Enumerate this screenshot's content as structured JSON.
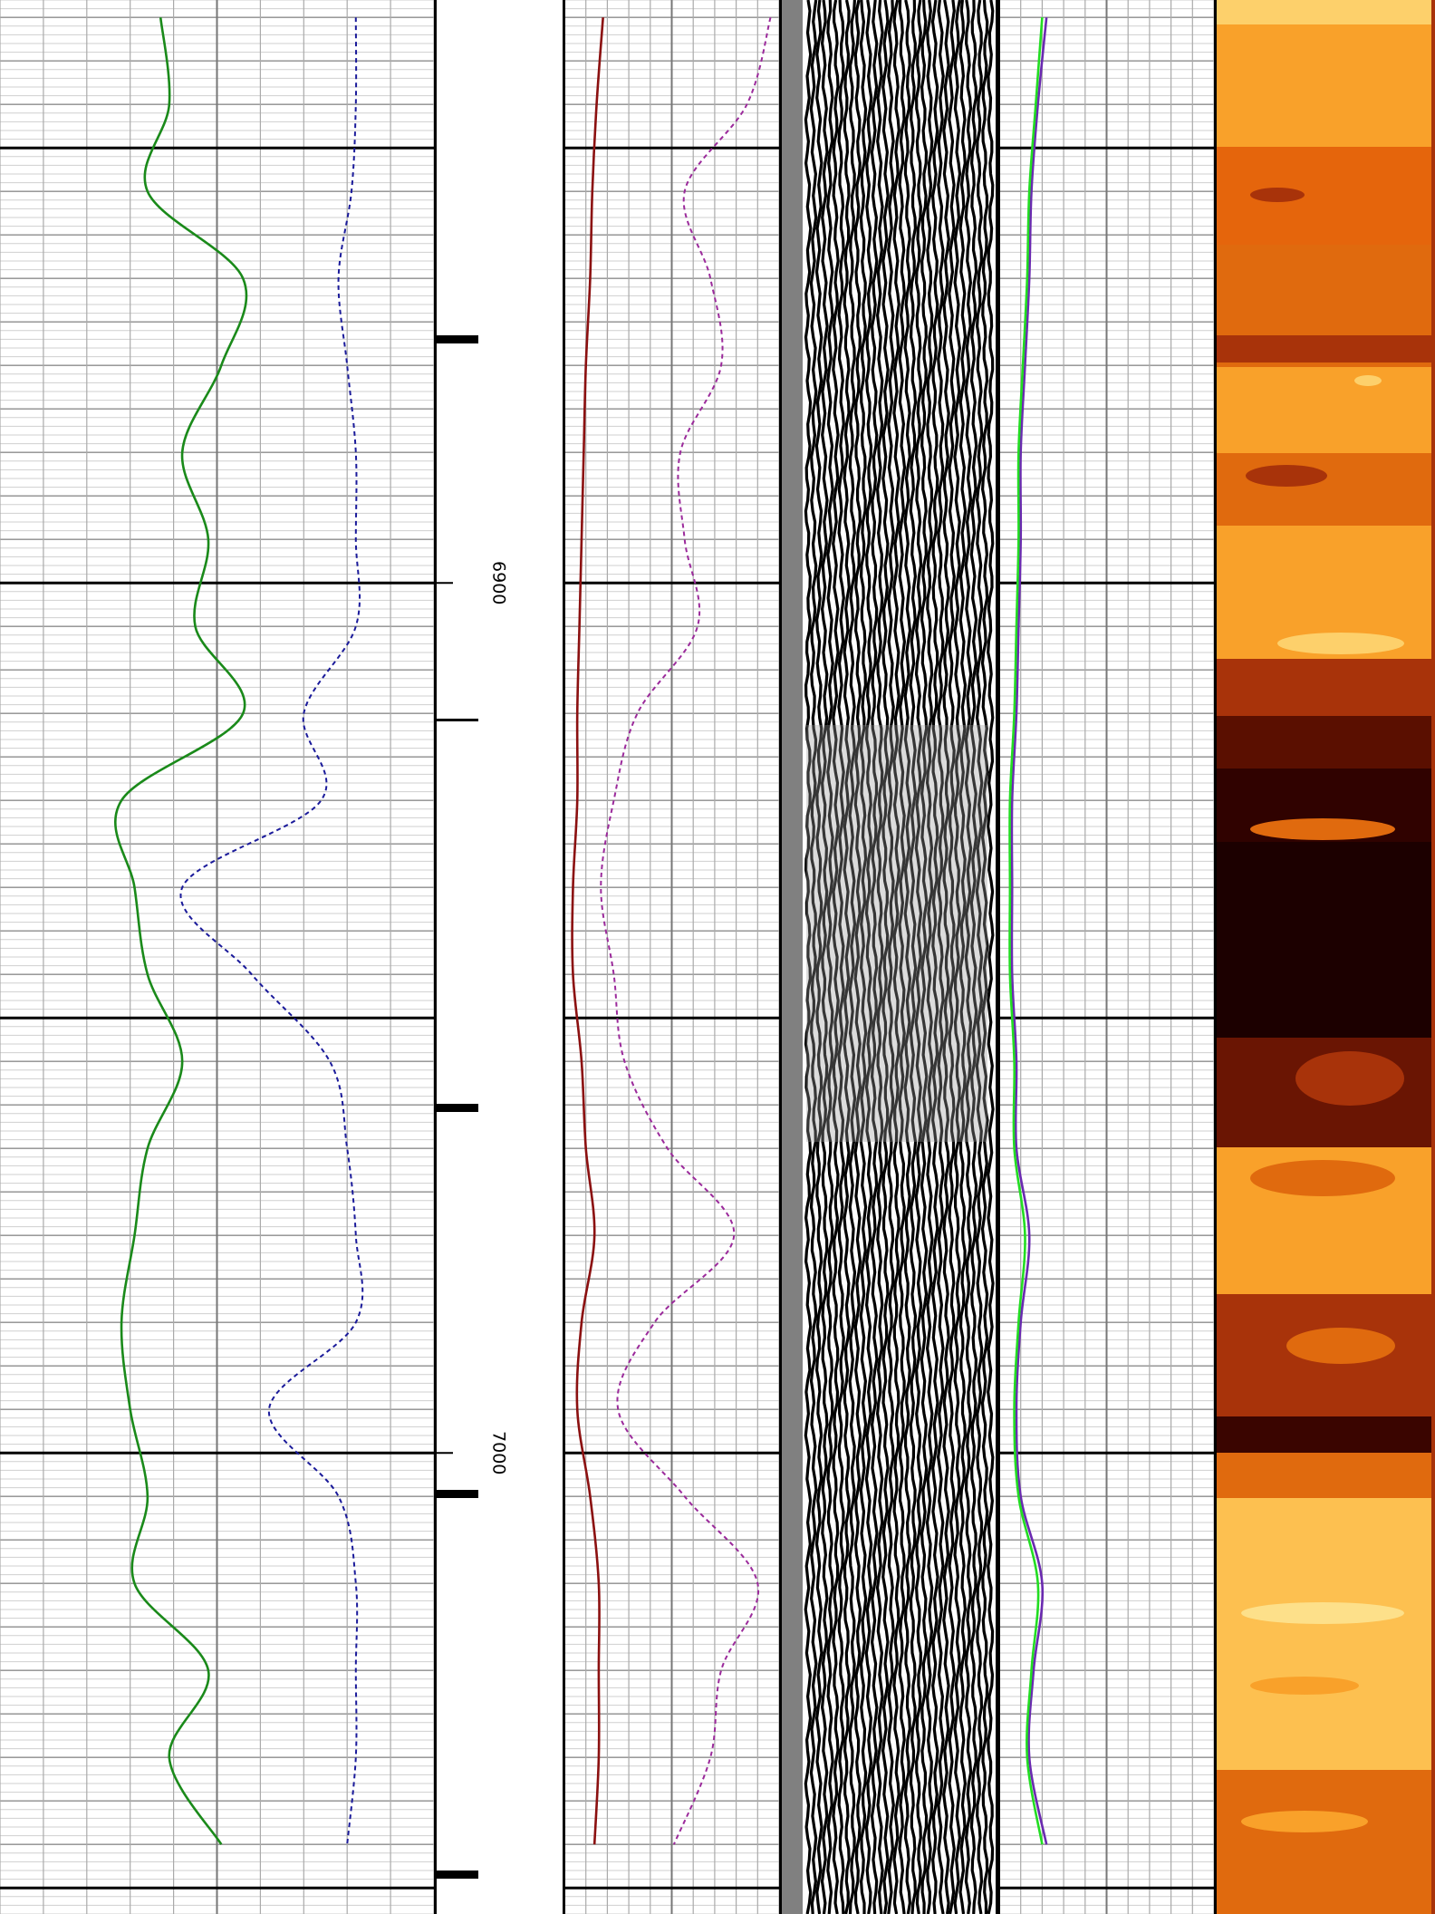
{
  "chart_data": {
    "type": "well-log",
    "ylim": [
      6833,
      7053
    ],
    "yticks": [
      6900,
      7000
    ],
    "xlim": [
      0,
      100
    ],
    "x": [
      6835,
      6845,
      6855,
      6865,
      6875,
      6885,
      6895,
      6905,
      6915,
      6925,
      6935,
      6945,
      6955,
      6965,
      6975,
      6985,
      6995,
      7005,
      7015,
      7025,
      7035,
      7045
    ],
    "series": [
      {
        "track": 1,
        "color": "#1a8a1a",
        "dashed": false,
        "values": [
          37,
          39,
          34,
          56,
          51,
          42,
          48,
          45,
          56,
          28,
          31,
          34,
          42,
          34,
          31,
          28,
          30,
          34,
          31,
          48,
          39,
          51
        ]
      },
      {
        "track": 1,
        "color": "#1a1a9a",
        "dashed": true,
        "values": [
          82,
          82,
          81,
          78,
          80,
          82,
          82,
          82,
          70,
          74,
          42,
          58,
          76,
          80,
          82,
          82,
          62,
          78,
          82,
          82,
          82,
          80
        ]
      },
      {
        "track": 2,
        "color": "#8b1010",
        "dashed": false,
        "values": [
          18,
          15,
          13,
          12,
          10,
          9,
          8,
          7,
          6,
          6,
          4,
          4,
          8,
          10,
          14,
          8,
          6,
          12,
          16,
          16,
          16,
          14
        ]
      },
      {
        "track": 2,
        "color": "#9b2a9b",
        "dashed": true,
        "values": [
          96,
          85,
          56,
          68,
          73,
          54,
          56,
          62,
          34,
          23,
          17,
          23,
          28,
          48,
          79,
          42,
          25,
          56,
          90,
          73,
          68,
          51
        ]
      },
      {
        "track": 3,
        "color": "#6a2ab0",
        "dashed": false,
        "values": [
          22,
          18,
          15,
          14,
          12,
          10,
          10,
          9,
          8,
          6,
          6,
          6,
          8,
          8,
          14,
          10,
          8,
          10,
          20,
          16,
          14,
          22
        ]
      },
      {
        "track": 3,
        "color": "#22dd22",
        "dashed": false,
        "values": [
          20,
          17,
          14,
          13,
          11,
          9,
          9,
          8,
          7,
          5,
          5,
          5,
          7,
          7,
          12,
          9,
          7,
          9,
          18,
          15,
          13,
          20
        ]
      }
    ]
  }
}
